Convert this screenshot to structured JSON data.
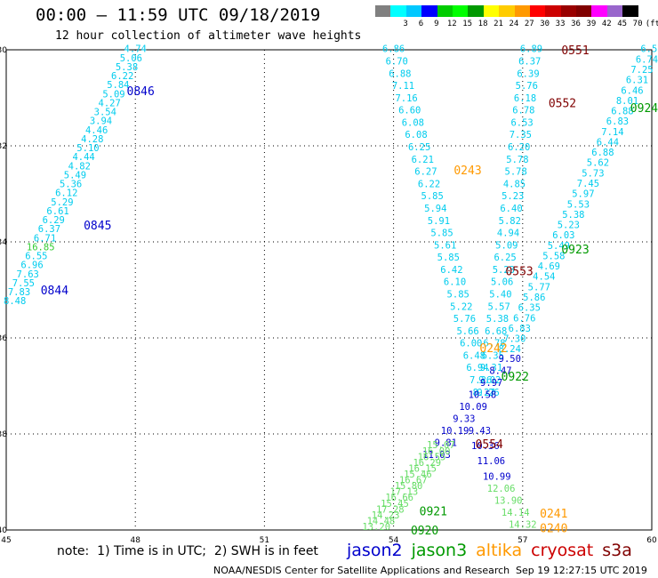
{
  "title": "00:00 – 11:59 UTC 09/18/2019",
  "subtitle": "12 hour collection of altimeter wave heights",
  "colorbar": {
    "colors": [
      "#808080",
      "#00ffff",
      "#00c8ff",
      "#0000ff",
      "#00cc00",
      "#00ff00",
      "#009900",
      "#ffff00",
      "#ffcc00",
      "#ff9900",
      "#ff0000",
      "#cc0000",
      "#990000",
      "#800000",
      "#ff00ff",
      "#9966cc",
      "#000000"
    ],
    "labels": [
      "",
      "3",
      "6",
      "9",
      "12",
      "15",
      "18",
      "21",
      "24",
      "27",
      "30",
      "33",
      "36",
      "39",
      "42",
      "45",
      "70",
      "(ft)"
    ]
  },
  "note": "note:  1) Time is in UTC;  2) SWH is in feet",
  "legend": [
    {
      "name": "jason2",
      "color": "#0000cc"
    },
    {
      "name": "jason3",
      "color": "#009900"
    },
    {
      "name": "altika",
      "color": "#ff9900"
    },
    {
      "name": "cryosat",
      "color": "#cc0000"
    },
    {
      "name": "s3a",
      "color": "#800000"
    }
  ],
  "footer_left": "NOAA/NESDIS Center for Satellite Applications and Research",
  "footer_right": "Sep 19 12:27:15 UTC 2019",
  "chart_data": {
    "type": "scatter",
    "x_ticks": [
      45,
      48,
      51,
      54,
      57,
      60
    ],
    "y_ticks": [
      -30,
      -32,
      -34,
      -36,
      -38,
      -40
    ],
    "xlim": [
      45,
      60
    ],
    "ylim": [
      -40,
      -30
    ],
    "grid": true,
    "time_labels": [
      {
        "text": "0846",
        "x": 47.8,
        "y": -30.85,
        "color": "#0000cc"
      },
      {
        "text": "0845",
        "x": 46.8,
        "y": -33.65,
        "color": "#0000cc"
      },
      {
        "text": "0844",
        "x": 45.8,
        "y": -35.0,
        "color": "#0000cc"
      },
      {
        "text": "0243",
        "x": 55.4,
        "y": -32.5,
        "color": "#ff9900"
      },
      {
        "text": "0551",
        "x": 57.9,
        "y": -30.0,
        "color": "#800000"
      },
      {
        "text": "0552",
        "x": 57.6,
        "y": -31.1,
        "color": "#800000"
      },
      {
        "text": "0924",
        "x": 59.5,
        "y": -31.2,
        "color": "#009900"
      },
      {
        "text": "0923",
        "x": 57.9,
        "y": -34.15,
        "color": "#009900"
      },
      {
        "text": "0553",
        "x": 56.6,
        "y": -34.6,
        "color": "#800000"
      },
      {
        "text": "0242",
        "x": 56.0,
        "y": -36.2,
        "color": "#ff9900"
      },
      {
        "text": "0922",
        "x": 56.5,
        "y": -36.8,
        "color": "#009900"
      },
      {
        "text": "0554",
        "x": 55.9,
        "y": -38.2,
        "color": "#800000"
      },
      {
        "text": "0921",
        "x": 54.6,
        "y": -39.6,
        "color": "#009900"
      },
      {
        "text": "0920",
        "x": 54.4,
        "y": -40.0,
        "color": "#009900"
      },
      {
        "text": "0241",
        "x": 57.4,
        "y": -39.65,
        "color": "#ff9900"
      },
      {
        "text": "0240",
        "x": 57.4,
        "y": -39.95,
        "color": "#ff9900"
      }
    ],
    "series": [
      {
        "name": "jason2",
        "color": "#00ccee",
        "start": [
          48.0,
          -30.05
        ],
        "end": [
          45.2,
          -35.3
        ],
        "values": [
          "4.74",
          "5.06",
          "5.38",
          "6.22",
          "5.84",
          "5.09",
          "4.27",
          "3.54",
          "3.94",
          "4.46",
          "4.28",
          "5.10",
          "4.44",
          "4.82",
          "5.49",
          "5.36",
          "6.12",
          "5.29",
          "6.61",
          "6.29",
          "6.37",
          "6.71",
          "16.85",
          "6.55",
          "6.96",
          "7.63",
          "7.55",
          "7.83",
          "8.48"
        ],
        "special": {
          "22": "#33cc33"
        }
      },
      {
        "name": "altika",
        "color": "#00ccee",
        "start": [
          54.0,
          -30.05
        ],
        "end": [
          56.1,
          -37.2
        ],
        "values": [
          "6.86",
          "6.70",
          "6.88",
          "7.11",
          "7.16",
          "6.60",
          "6.08",
          "6.08",
          "6.25",
          "6.21",
          "6.27",
          "6.22",
          "5.85",
          "5.94",
          "5.91",
          "5.85",
          "5.61",
          "5.85",
          "6.42",
          "6.10",
          "5.85",
          "5.22",
          "5.76",
          "5.66",
          "6.00",
          "6.48",
          "6.94",
          "7.26",
          "8.27"
        ]
      },
      {
        "name": "cryosat",
        "color": "#00ccee",
        "start": [
          57.2,
          -30.05
        ],
        "end": [
          56.2,
          -37.2
        ],
        "values": [
          "6.89",
          "6.37",
          "6.39",
          "5.76",
          "6.18",
          "6.78",
          "6.53",
          "7.35",
          "6.20",
          "5.78",
          "5.78",
          "4.85",
          "5.23",
          "6.40",
          "5.82",
          "4.94",
          "5.09",
          "6.25",
          "5.23",
          "5.06",
          "5.40",
          "5.57",
          "5.38",
          "6.68",
          "6.78",
          "6.35",
          "9.31",
          "9.02",
          "9.26"
        ]
      },
      {
        "name": "s3a",
        "color": "#00ccee",
        "start": [
          60.0,
          -30.05
        ],
        "end": [
          56.7,
          -36.3
        ],
        "values": [
          "6.57",
          "6.74",
          "7.25",
          "6.31",
          "6.46",
          "8.01",
          "6.88",
          "6.83",
          "7.14",
          "6.44",
          "6.88",
          "5.62",
          "5.73",
          "7.45",
          "5.97",
          "5.53",
          "5.38",
          "5.23",
          "6.03",
          "5.49",
          "5.58",
          "4.69",
          "4.54",
          "5.77",
          "5.86",
          "6.35",
          "6.76",
          "6.83",
          "7.30",
          "8.24"
        ]
      },
      {
        "name": "jason3",
        "color": "#0000cc",
        "start": [
          56.7,
          -36.5
        ],
        "end": [
          55.0,
          -38.5
        ],
        "values": [
          "9.50",
          "8.47",
          "9.97",
          "10.58",
          "10.09",
          "9.33",
          "10.19",
          "9.81",
          "11.03"
        ]
      },
      {
        "name": "jason3-south",
        "color": "#66dd66",
        "start": [
          55.1,
          -38.3
        ],
        "end": [
          53.6,
          -40.0
        ],
        "values": [
          "15.07",
          "16.00",
          "16.55",
          "16.29",
          "16.15",
          "15.46",
          "16.67",
          "15.80",
          "17.13",
          "16.66",
          "15.45",
          "17.28",
          "14.23",
          "14.48",
          "13.20"
        ]
      },
      {
        "name": "cryosat-south",
        "color": "#0000cc",
        "start": [
          56.0,
          -38.0
        ],
        "end": [
          56.4,
          -38.95
        ],
        "values": [
          "9.43",
          "10.36",
          "11.06",
          "10.99"
        ]
      },
      {
        "name": "cryosat-south-2",
        "color": "#66dd66",
        "start": [
          56.5,
          -39.2
        ],
        "end": [
          57.0,
          -39.95
        ],
        "values": [
          "12.06",
          "13.90",
          "14.14",
          "14.32"
        ]
      }
    ]
  }
}
